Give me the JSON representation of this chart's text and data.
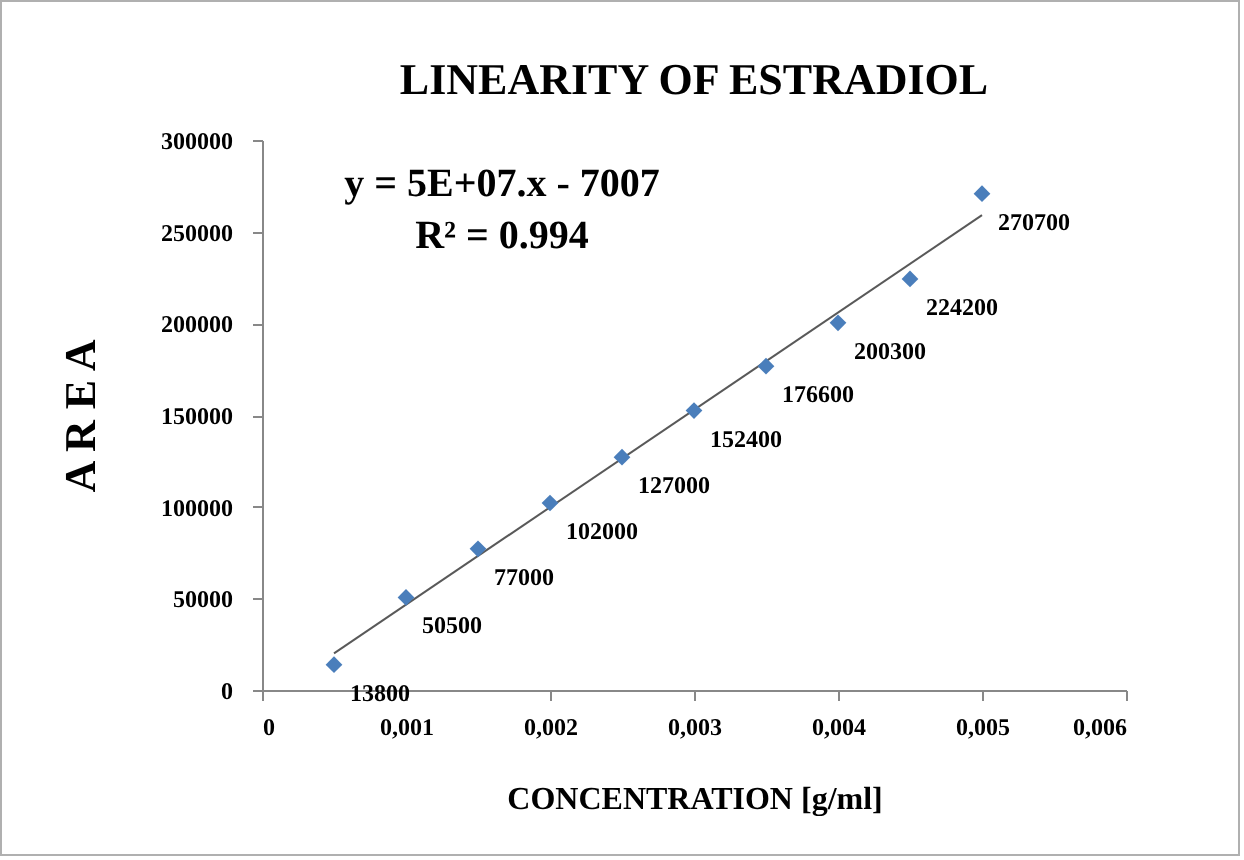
{
  "chart_data": {
    "type": "scatter",
    "title": "LINEARITY OF ESTRADIOL",
    "xlabel": "CONCENTRATION [g/ml]",
    "ylabel": "A R E A",
    "annotations": [
      "y = 5E+07.x - 7007",
      "R² = 0.994"
    ],
    "series": [
      {
        "color": "#4a7ebb",
        "marker": "diamond",
        "x": [
          0.0005,
          0.001,
          0.0015,
          0.002,
          0.0025,
          0.003,
          0.0035,
          0.004,
          0.0045,
          0.005
        ],
        "values": [
          13800,
          50500,
          77000,
          102000,
          127000,
          152400,
          176600,
          200300,
          224200,
          270700
        ],
        "value_labels": [
          "13800",
          "50500",
          "77000",
          "102000",
          "127000",
          "152400",
          "176600",
          "200300",
          "224200",
          "270700"
        ]
      },
      {
        "type": "line",
        "color": "#595959",
        "line_style": "solid",
        "x": [
          0.0005,
          0.005
        ],
        "values": [
          20000,
          259000
        ]
      }
    ],
    "xlim": [
      0,
      0.006
    ],
    "xticks": [
      0,
      {
        "value": 0.001,
        "label": "0,001"
      },
      {
        "value": 0.002,
        "label": "0,002"
      },
      {
        "value": 0.003,
        "label": "0,003"
      },
      {
        "value": 0.004,
        "label": "0,004"
      },
      {
        "value": 0.005,
        "label": "0,005"
      },
      {
        "value": 0.006,
        "label": "0,006"
      }
    ],
    "ylim": [
      0,
      300000
    ],
    "yticks": [
      0,
      50000,
      100000,
      150000,
      200000,
      250000,
      300000
    ],
    "grid": false
  }
}
